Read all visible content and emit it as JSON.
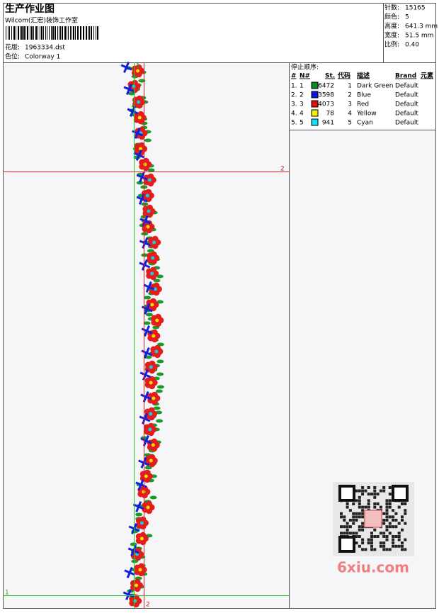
{
  "header": {
    "title": "生产作业图",
    "company": "Wilcom(汇宏)装饰工作室",
    "design_label": "花版:",
    "design": "1963334.dst",
    "colorway_label": "色位:",
    "colorway": "Colorway 1"
  },
  "stats": [
    [
      "针数:",
      "15165"
    ],
    [
      "颜色:",
      "5"
    ],
    [
      "高度:",
      "641.3 mm"
    ],
    [
      "宽度:",
      "51.5 mm"
    ],
    [
      "比例:",
      "0.40"
    ]
  ],
  "stop_sequence": {
    "title": "停止顺序:",
    "columns": [
      "#",
      "N#",
      "St.",
      "代码",
      "描述",
      "Brand",
      "元素"
    ],
    "rows": [
      {
        "index": "1.",
        "n": "1",
        "color": "#0a8a1e",
        "stitches": "6472",
        "code": "1",
        "description": "Dark Green",
        "brand": "Default"
      },
      {
        "index": "2.",
        "n": "2",
        "color": "#1010e0",
        "stitches": "3598",
        "code": "2",
        "description": "Blue",
        "brand": "Default"
      },
      {
        "index": "3.",
        "n": "3",
        "color": "#e01010",
        "stitches": "4073",
        "code": "3",
        "description": "Red",
        "brand": "Default"
      },
      {
        "index": "4.",
        "n": "4",
        "color": "#f0f000",
        "stitches": "78",
        "code": "4",
        "description": "Yellow",
        "brand": "Default"
      },
      {
        "index": "5.",
        "n": "5",
        "color": "#10e0f0",
        "stitches": "941",
        "code": "5",
        "description": "Cyan",
        "brand": "Default"
      }
    ]
  },
  "guides": {
    "green": "1",
    "red": "2"
  },
  "watermark": "6xiu.com"
}
